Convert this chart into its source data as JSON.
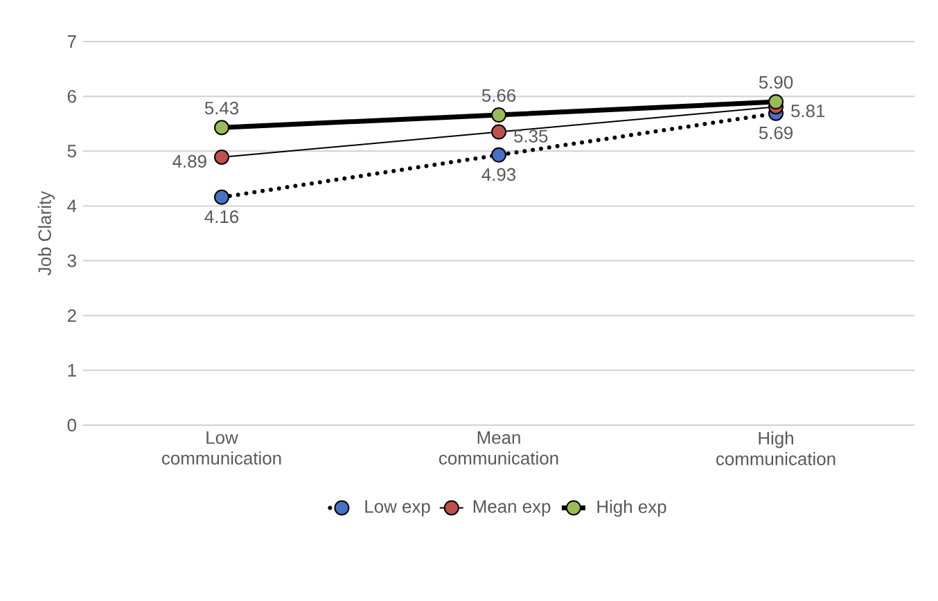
{
  "chart_data": {
    "type": "line",
    "ylabel": "Job Clarity",
    "categories": [
      "Low communication",
      "Mean communication",
      "High communication"
    ],
    "ylim": [
      0,
      7
    ],
    "yticks": [
      0,
      1,
      2,
      3,
      4,
      5,
      6,
      7
    ],
    "grid": "y",
    "legend": "bottom",
    "marker": "circle",
    "series": [
      {
        "name": "Low exp",
        "color": "#4472c4",
        "line_style": "dotted",
        "values": [
          4.16,
          4.93,
          5.69
        ],
        "value_labels": [
          "4.16",
          "4.93",
          "5.69"
        ]
      },
      {
        "name": "Mean exp",
        "color": "#c0504d",
        "line_style": "solid",
        "values": [
          4.89,
          5.35,
          5.81
        ],
        "value_labels": [
          "4.89",
          "5.35",
          "5.81"
        ]
      },
      {
        "name": "High exp",
        "color": "#9bbb59",
        "line_style": "solid",
        "values": [
          5.43,
          5.66,
          5.9
        ],
        "value_labels": [
          "5.43",
          "5.66",
          "5.90"
        ]
      }
    ]
  }
}
